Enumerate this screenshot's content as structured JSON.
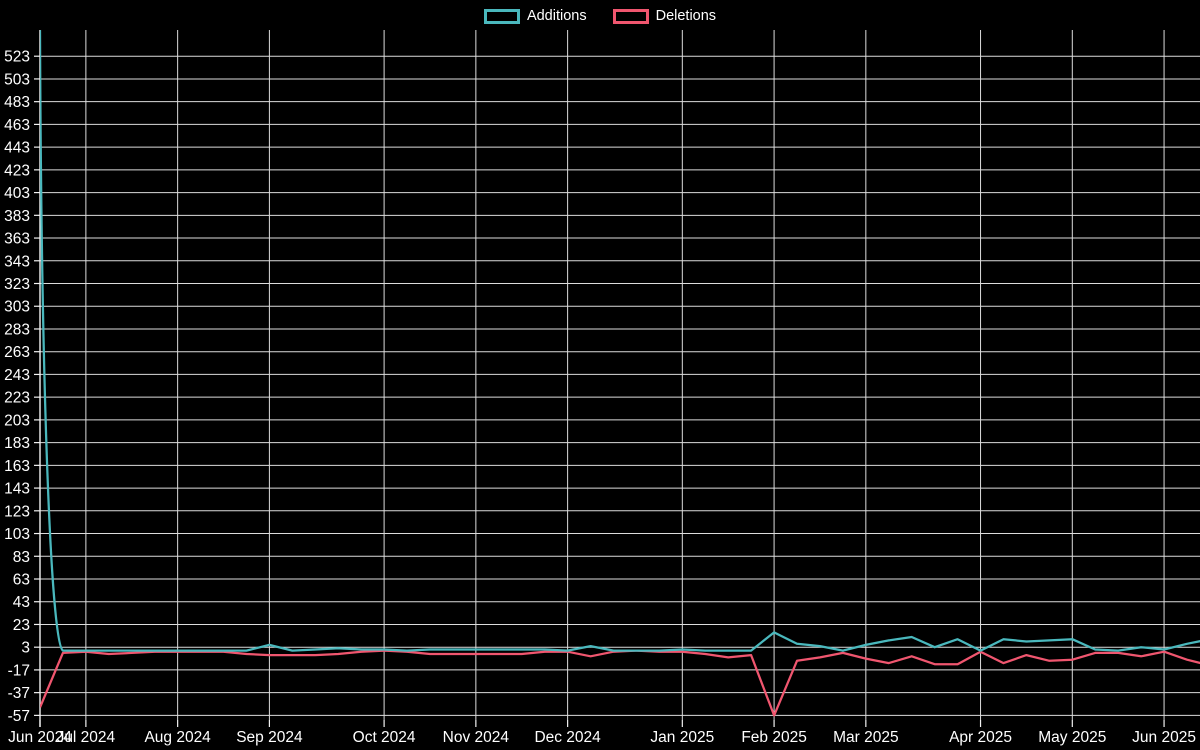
{
  "chart_data": {
    "type": "line",
    "title": "",
    "xlabel": "",
    "ylabel": "",
    "legend_position": "top",
    "grid": true,
    "background_color": "#000000",
    "grid_color": "#dcdcdc",
    "axis_color": "#f2f2f2",
    "label_color": "#ffffff",
    "x_unit": "week_index",
    "x": [
      0,
      1,
      2,
      3,
      4,
      5,
      6,
      7,
      8,
      9,
      10,
      11,
      12,
      13,
      14,
      15,
      16,
      17,
      18,
      19,
      20,
      21,
      22,
      23,
      24,
      25,
      26,
      27,
      28,
      29,
      30,
      31,
      32,
      33,
      34,
      35,
      36,
      37,
      38,
      39,
      40,
      41,
      42,
      43,
      44,
      45,
      46,
      47,
      48,
      49,
      50,
      51
    ],
    "x_ticks": [
      {
        "label": "Jun 2024",
        "week": 0
      },
      {
        "label": "Jul 2024",
        "week": 2
      },
      {
        "label": "Aug 2024",
        "week": 6
      },
      {
        "label": "Sep 2024",
        "week": 10
      },
      {
        "label": "Oct 2024",
        "week": 15
      },
      {
        "label": "Nov 2024",
        "week": 19
      },
      {
        "label": "Dec 2024",
        "week": 23
      },
      {
        "label": "Jan 2025",
        "week": 28
      },
      {
        "label": "Feb 2025",
        "week": 32
      },
      {
        "label": "Mar 2025",
        "week": 36
      },
      {
        "label": "Apr 2025",
        "week": 41
      },
      {
        "label": "May 2025",
        "week": 45
      },
      {
        "label": "Jun 2025",
        "week": 49
      }
    ],
    "y_ticks": [
      -57,
      -37,
      -17,
      3,
      23,
      43,
      63,
      83,
      103,
      123,
      143,
      163,
      183,
      203,
      223,
      243,
      263,
      283,
      303,
      323,
      343,
      363,
      383,
      403,
      423,
      443,
      463,
      483,
      503,
      523
    ],
    "ylim": [
      -61,
      546
    ],
    "series": [
      {
        "name": "Additions",
        "color": "#4ab8bd",
        "values": [
          546,
          0,
          0,
          0,
          0,
          0,
          0,
          0,
          0,
          0,
          5,
          0,
          1,
          2,
          1,
          1,
          0,
          1,
          1,
          1,
          1,
          1,
          1,
          0,
          4,
          0,
          0,
          0,
          1,
          0,
          0,
          0,
          16,
          6,
          4,
          0,
          5,
          9,
          12,
          3,
          10,
          0,
          10,
          8,
          9,
          10,
          1,
          0,
          3,
          1,
          6,
          10
        ]
      },
      {
        "name": "Deletions",
        "color": "#f0566f",
        "values": [
          -50,
          -2,
          -1,
          -3,
          -2,
          -1,
          -1,
          -1,
          -1,
          -3,
          -4,
          -4,
          -4,
          -3,
          -1,
          0,
          -1,
          -3,
          -3,
          -3,
          -3,
          -3,
          -1,
          -1,
          -5,
          -1,
          0,
          -1,
          -1,
          -3,
          -6,
          -4,
          -57,
          -9,
          -6,
          -2,
          -7,
          -11,
          -5,
          -12,
          -12,
          -1,
          -11,
          -4,
          -9,
          -8,
          -2,
          -2,
          -5,
          -1,
          -8,
          -13
        ]
      }
    ]
  }
}
